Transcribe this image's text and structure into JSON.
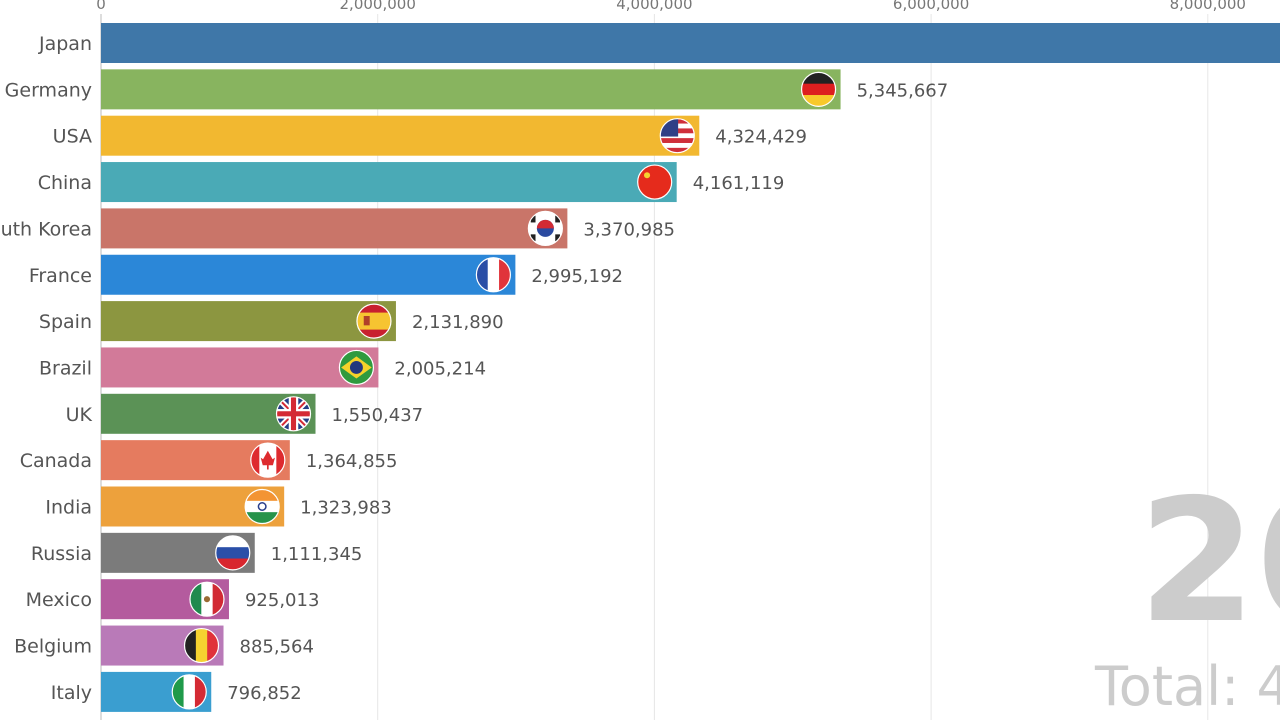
{
  "chart_data": {
    "type": "bar",
    "orientation": "horizontal",
    "categories": [
      "Japan",
      "Germany",
      "USA",
      "China",
      "uth Korea",
      "France",
      "Spain",
      "Brazil",
      "UK",
      "Canada",
      "India",
      "Russia",
      "Mexico",
      "Belgium",
      "Italy"
    ],
    "values": [
      9200000,
      5345667,
      4324429,
      4161119,
      3370985,
      2995192,
      2131890,
      2005214,
      1550437,
      1364855,
      1323983,
      1111345,
      925013,
      885564,
      796852
    ],
    "value_labels": [
      "",
      "5,345,667",
      "4,324,429",
      "4,161,119",
      "3,370,985",
      "2,995,192",
      "2,131,890",
      "2,005,214",
      "1,550,437",
      "1,364,855",
      "1,323,983",
      "1,111,345",
      "925,013",
      "885,564",
      "796,852"
    ],
    "flags": [
      "",
      "flag-germany-icon",
      "flag-usa-icon",
      "flag-china-icon",
      "flag-south-korea-icon",
      "flag-france-icon",
      "flag-spain-icon",
      "flag-brazil-icon",
      "flag-uk-icon",
      "flag-canada-icon",
      "flag-india-icon",
      "flag-russia-icon",
      "flag-mexico-icon",
      "flag-belgium-icon",
      "flag-italy-icon"
    ],
    "colors": [
      "#3f77a8",
      "#88b45f",
      "#f2b830",
      "#4aaab6",
      "#c97569",
      "#2b87d8",
      "#8c9640",
      "#d27a99",
      "#5b9256",
      "#e57b5f",
      "#eda13c",
      "#7b7b7b",
      "#b45b9e",
      "#b97ab8",
      "#3a9ed0"
    ],
    "xaxis": {
      "ticks": [
        0,
        2000000,
        4000000,
        6000000,
        8000000
      ],
      "tick_labels": [
        "0",
        "2,000,000",
        "4,000,000",
        "6,000,000",
        "8,000,000"
      ],
      "range": [
        0,
        8300000
      ]
    },
    "grid": true,
    "year_text": "20",
    "total_text": "Total: 4"
  }
}
